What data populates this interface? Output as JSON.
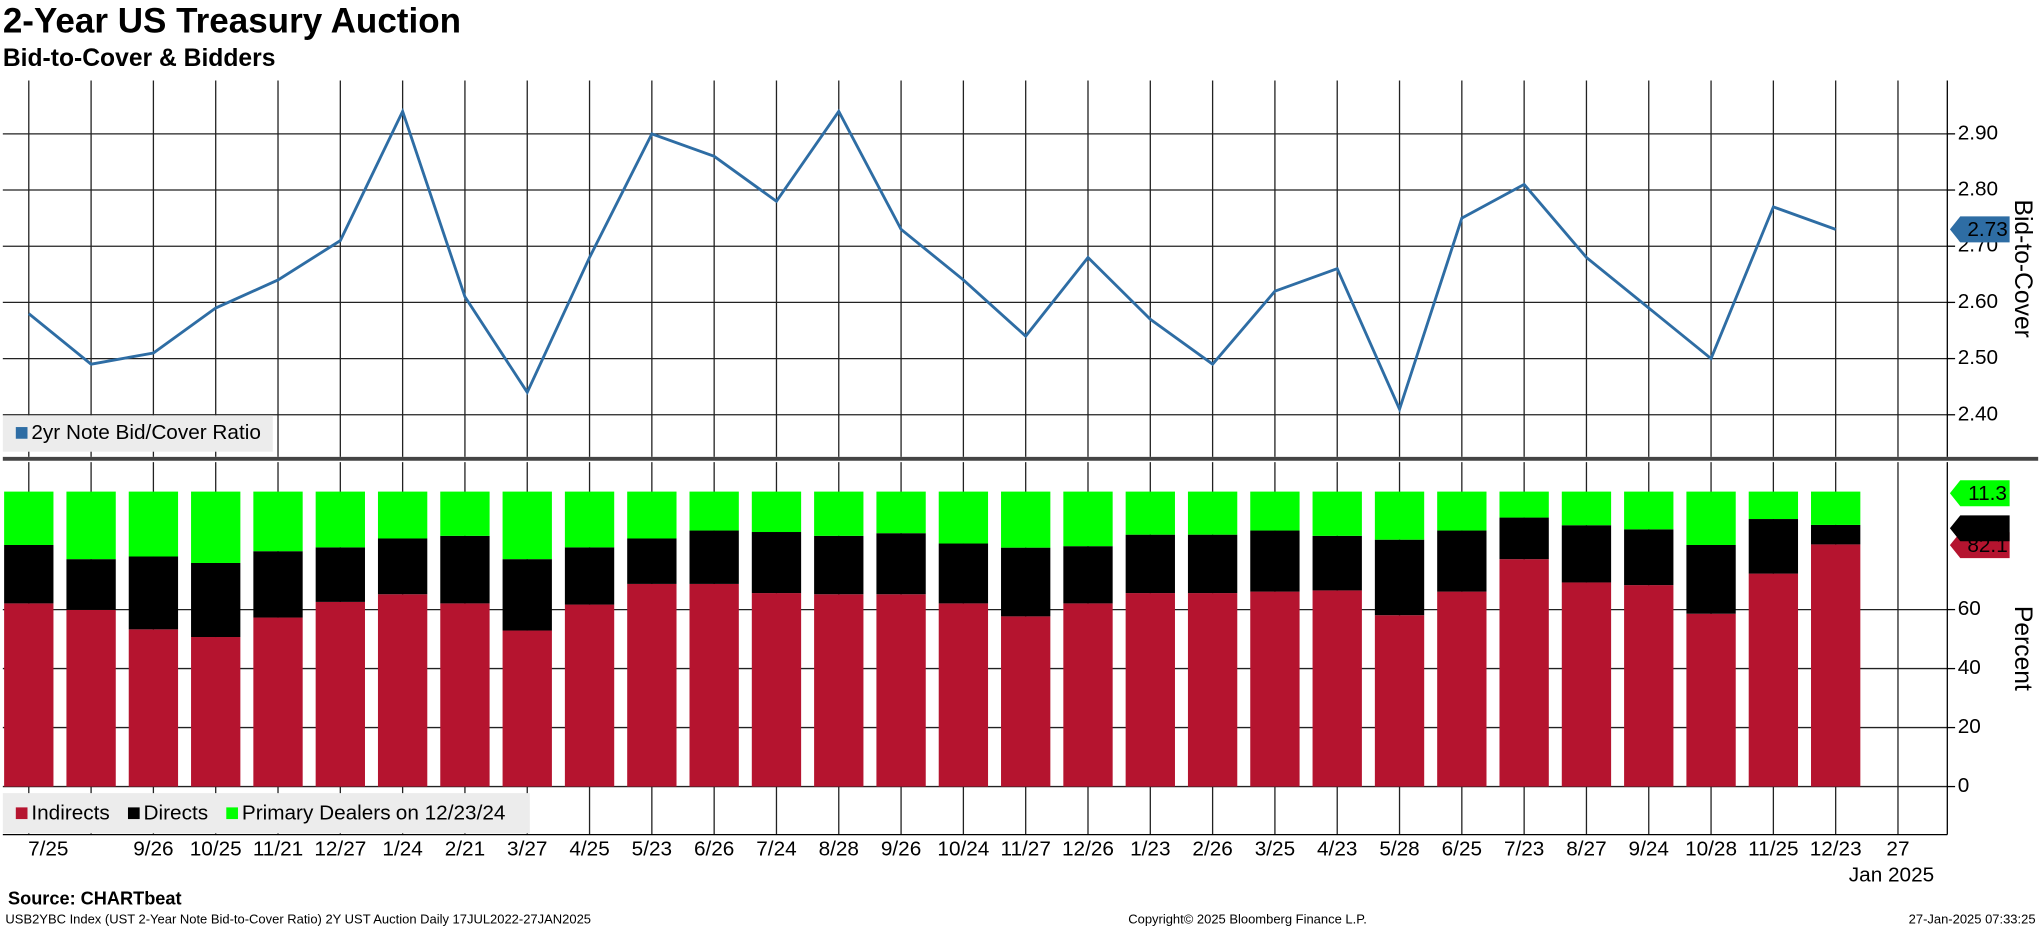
{
  "header": {
    "title": "2-Year US Treasury Auction",
    "subtitle": "Bid-to-Cover & Bidders"
  },
  "chart_data": [
    {
      "type": "line",
      "y_label": "Bid-to-Cover",
      "series": [
        {
          "name": "2yr Note Bid/Cover Ratio",
          "color": "#2e6da4",
          "values": [
            2.58,
            2.49,
            2.51,
            2.59,
            2.64,
            2.71,
            2.94,
            2.61,
            2.44,
            2.68,
            2.9,
            2.86,
            2.78,
            2.94,
            2.73,
            2.64,
            2.54,
            2.68,
            2.57,
            2.49,
            2.62,
            2.66,
            2.41,
            2.75,
            2.81,
            2.68,
            2.59,
            2.5,
            2.77,
            2.73,
            null
          ]
        }
      ],
      "ylim": [
        2.325,
        2.995
      ],
      "yticks": [
        {
          "value": 2.4,
          "label": "2.40"
        },
        {
          "value": 2.5,
          "label": "2.50"
        },
        {
          "value": 2.6,
          "label": "2.60"
        },
        {
          "value": 2.7,
          "label": "2.70"
        },
        {
          "value": 2.8,
          "label": "2.80"
        },
        {
          "value": 2.9,
          "label": "2.90"
        }
      ],
      "grid": true
    },
    {
      "type": "stacked_bar",
      "y_label": "Percent",
      "categories": [
        "7/25",
        null,
        "9/26",
        "10/25",
        "11/21",
        "12/27",
        "1/24",
        "2/21",
        "3/27",
        "4/25",
        "5/23",
        "6/26",
        "7/24",
        "8/28",
        "9/26",
        "10/24",
        "11/27",
        "12/26",
        "1/23",
        "2/26",
        "3/25",
        "4/23",
        "5/28",
        "6/25",
        "7/23",
        "8/27",
        "9/24",
        "10/28",
        "11/25",
        "12/23",
        "27"
      ],
      "x_year_label": "Jan 2025",
      "series": [
        {
          "name": "Indirects",
          "color": "#b5142f",
          "values": [
            62.1,
            59.9,
            53.3,
            50.7,
            57.3,
            62.6,
            65.2,
            62.1,
            52.9,
            61.7,
            68.7,
            68.7,
            65.6,
            65.2,
            65.2,
            62.1,
            57.7,
            62.1,
            65.6,
            65.6,
            66.1,
            66.5,
            58.1,
            66.1,
            77.1,
            69.2,
            68.3,
            58.6,
            72.2,
            82.1,
            null
          ]
        },
        {
          "name": "Directs",
          "color": "#000000",
          "values": [
            19.8,
            17.2,
            24.7,
            25.1,
            22.5,
            18.5,
            18.9,
            22.9,
            24.2,
            19.4,
            15.4,
            18.1,
            20.7,
            19.8,
            20.7,
            20.3,
            23.3,
            19.4,
            19.8,
            19.8,
            20.7,
            18.5,
            25.6,
            20.7,
            14.1,
            19.4,
            18.9,
            23.3,
            18.5,
            6.6,
            null
          ]
        },
        {
          "name": "Primary Dealers",
          "color": "#00ff00",
          "values": [
            18.1,
            22.9,
            22.0,
            24.2,
            20.2,
            18.9,
            15.9,
            15.0,
            22.9,
            18.9,
            15.9,
            13.2,
            13.7,
            15.0,
            14.1,
            17.6,
            19.0,
            18.5,
            14.6,
            14.6,
            13.2,
            15.0,
            16.3,
            13.2,
            8.8,
            11.4,
            12.8,
            18.1,
            9.3,
            11.3,
            null
          ]
        }
      ],
      "legend_note": "on 12/23/24",
      "ylim": [
        -16.3,
        110
      ],
      "yticks": [
        0,
        20,
        40,
        60
      ],
      "grid": true
    }
  ],
  "footer": {
    "source": "Source: CHARTbeat",
    "ticker": "USB2YBC Index (UST 2-Year Note Bid-to-Cover Ratio) 2Y UST Auction  Daily 17JUL2022-27JAN2025",
    "copyright": "Copyright© 2025 Bloomberg Finance L.P.",
    "timestamp": "27-Jan-2025 07:33:25"
  }
}
